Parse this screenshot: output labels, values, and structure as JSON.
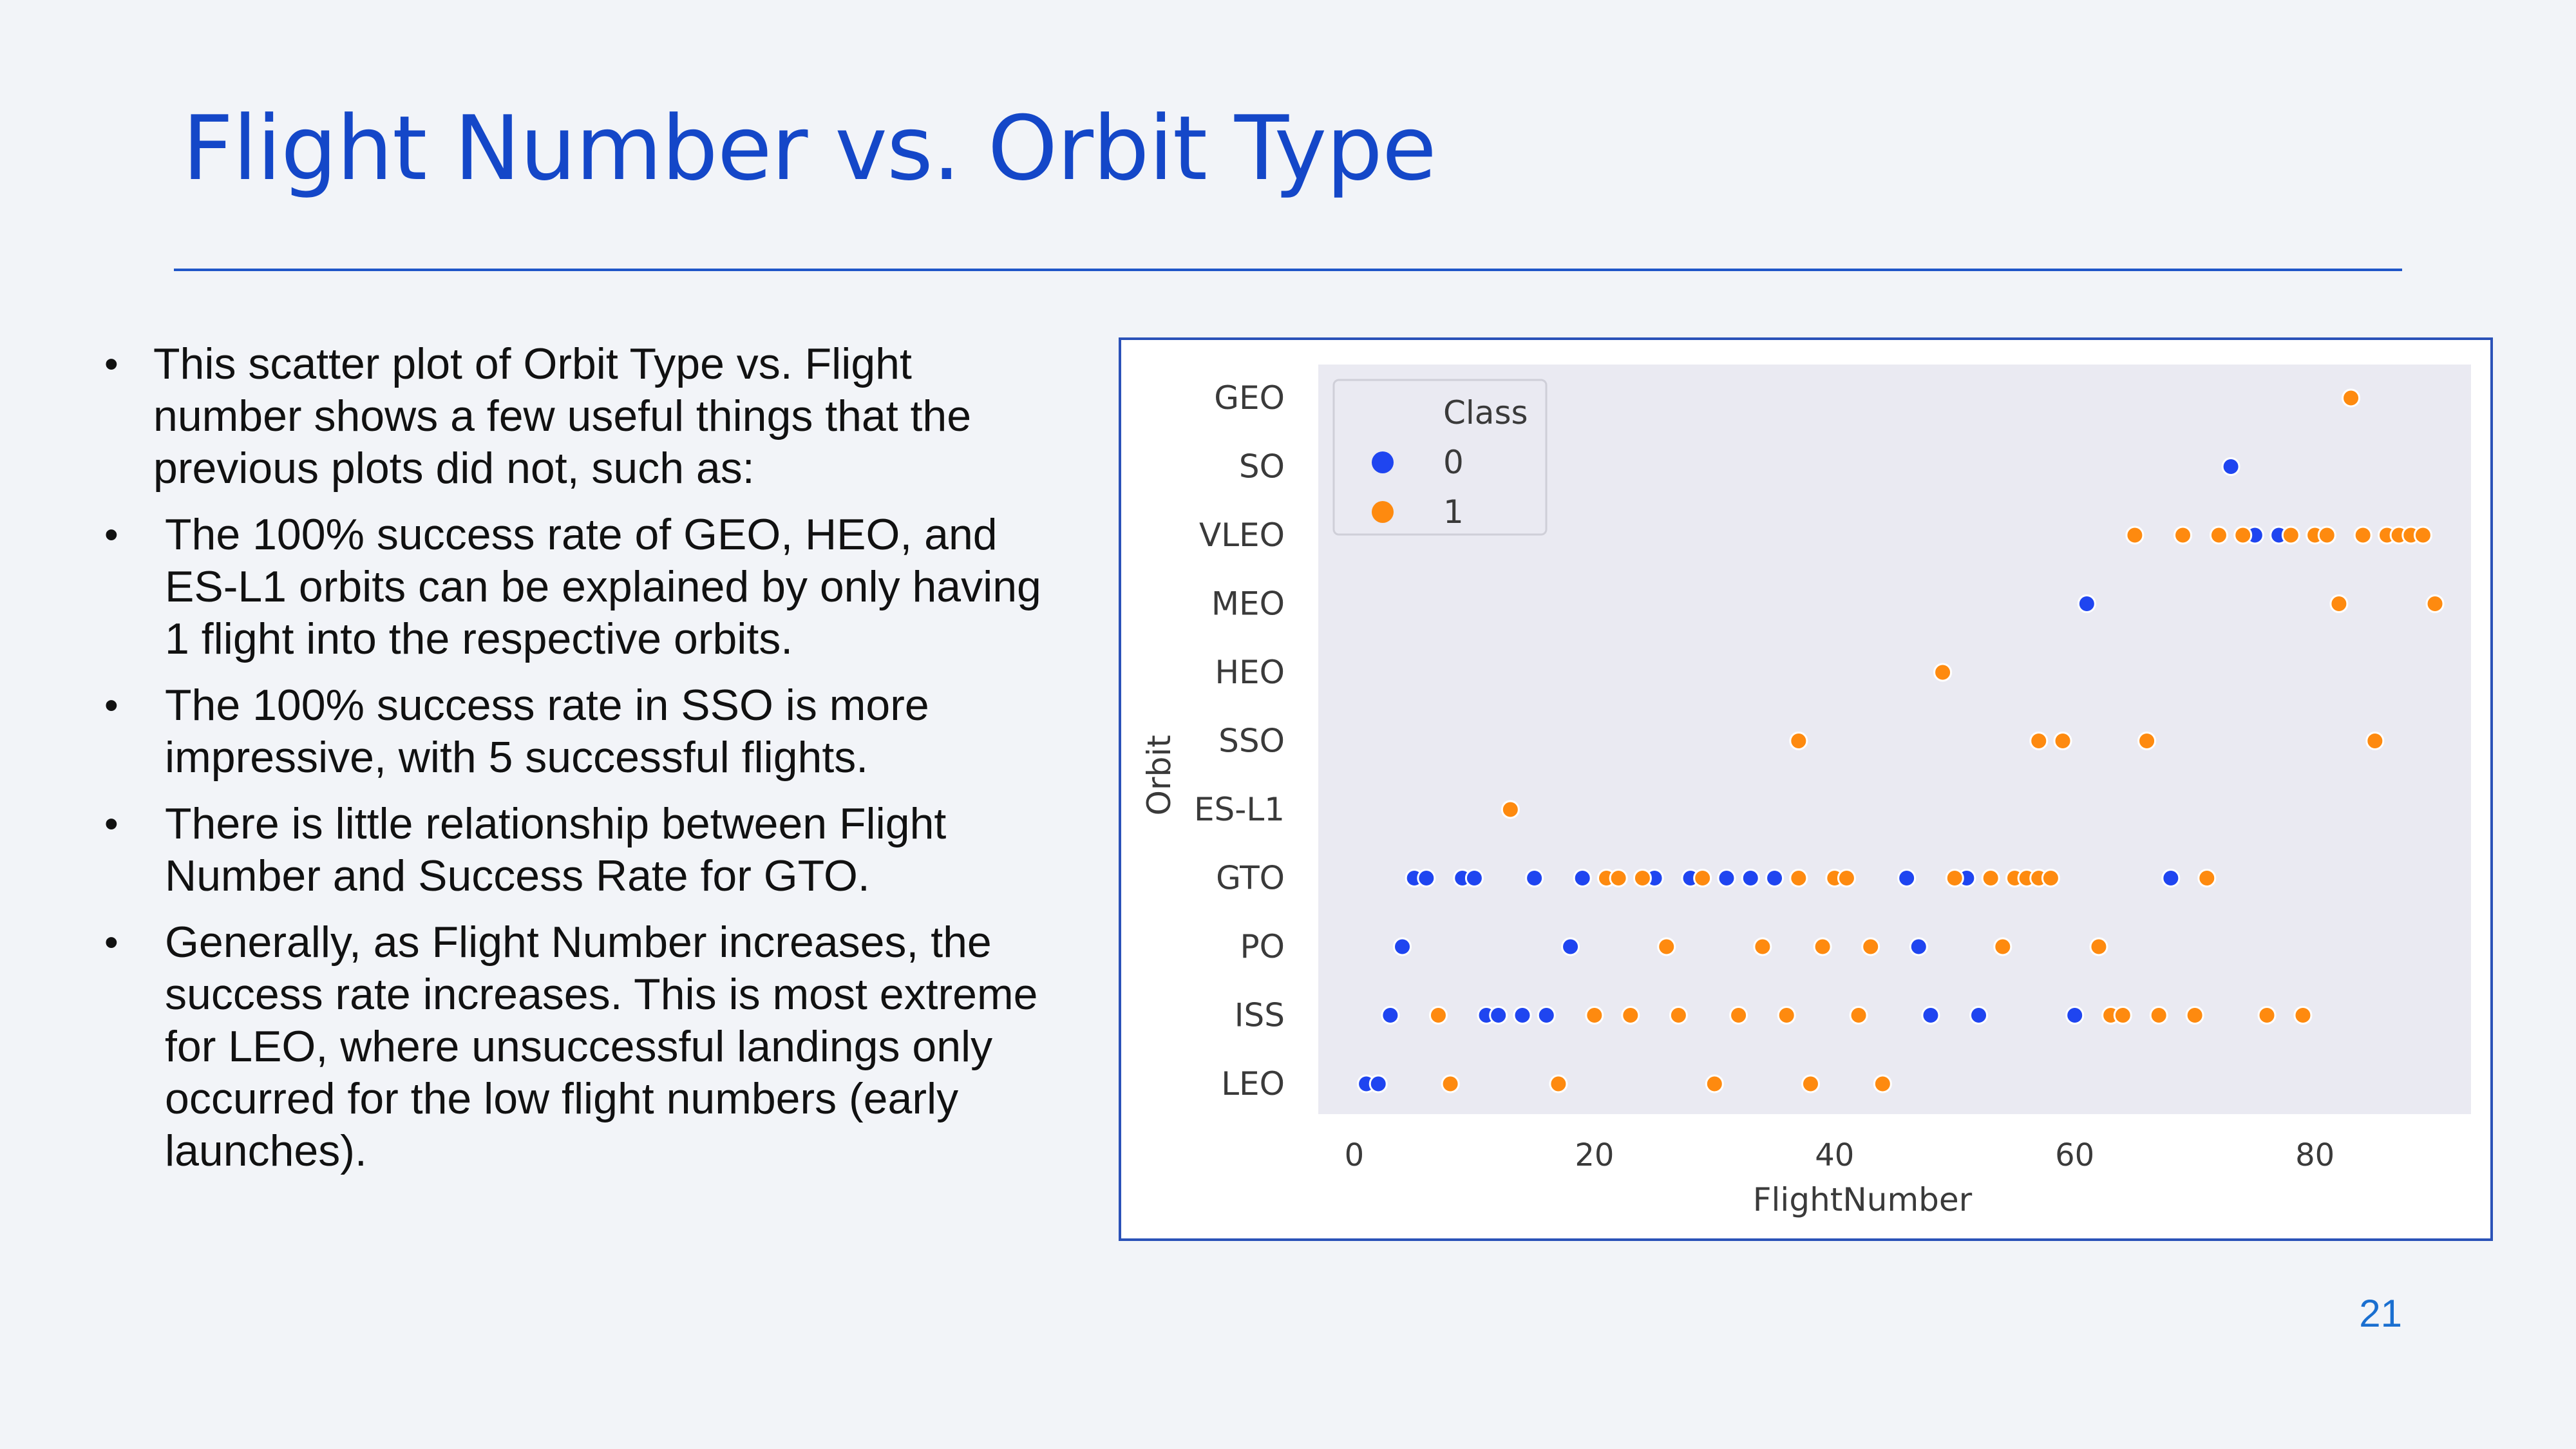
{
  "slide": {
    "title": "Flight Number vs. Orbit Type",
    "page_number": "21",
    "bullets": [
      "This scatter plot of Orbit Type vs. Flight number shows a few useful things that the previous plots did not, such as:",
      "The 100% success rate of GEO, HEO, and ES-L1 orbits can be explained by only having 1 flight into the respective orbits.",
      "The 100% success rate in SSO is more impressive, with 5 successful flights.",
      "There is little relationship between Flight Number and Success Rate for GTO.",
      "Generally, as Flight Number increases, the success rate increases. This is most extreme for LEO, where unsuccessful landings only occurred for the low flight numbers (early launches)."
    ],
    "bullet_glyph": "•"
  },
  "chart_data": {
    "type": "scatter",
    "title": "",
    "xlabel": "FlightNumber",
    "ylabel": "Orbit",
    "xlim": [
      -3,
      93
    ],
    "x_ticks": [
      0,
      20,
      40,
      60,
      80
    ],
    "categories": [
      "GEO",
      "SO",
      "VLEO",
      "MEO",
      "HEO",
      "SSO",
      "ES-L1",
      "GTO",
      "PO",
      "ISS",
      "LEO"
    ],
    "grid": false,
    "legend": {
      "title": "Class",
      "position": "top-left",
      "entries": [
        "0",
        "1"
      ]
    },
    "colors": {
      "0": "#1f45f0",
      "1": "#fe8a0f",
      "plot_bg": "#eaeaf2"
    },
    "series": [
      {
        "name": "0",
        "color": "#1f45f0",
        "points": [
          {
            "x": 1,
            "y": "LEO"
          },
          {
            "x": 2,
            "y": "LEO"
          },
          {
            "x": 3,
            "y": "ISS"
          },
          {
            "x": 11,
            "y": "ISS"
          },
          {
            "x": 12,
            "y": "ISS"
          },
          {
            "x": 14,
            "y": "ISS"
          },
          {
            "x": 16,
            "y": "ISS"
          },
          {
            "x": 48,
            "y": "ISS"
          },
          {
            "x": 52,
            "y": "ISS"
          },
          {
            "x": 60,
            "y": "ISS"
          },
          {
            "x": 4,
            "y": "PO"
          },
          {
            "x": 18,
            "y": "PO"
          },
          {
            "x": 47,
            "y": "PO"
          },
          {
            "x": 5,
            "y": "GTO"
          },
          {
            "x": 6,
            "y": "GTO"
          },
          {
            "x": 9,
            "y": "GTO"
          },
          {
            "x": 10,
            "y": "GTO"
          },
          {
            "x": 15,
            "y": "GTO"
          },
          {
            "x": 19,
            "y": "GTO"
          },
          {
            "x": 25,
            "y": "GTO"
          },
          {
            "x": 28,
            "y": "GTO"
          },
          {
            "x": 31,
            "y": "GTO"
          },
          {
            "x": 33,
            "y": "GTO"
          },
          {
            "x": 35,
            "y": "GTO"
          },
          {
            "x": 46,
            "y": "GTO"
          },
          {
            "x": 51,
            "y": "GTO"
          },
          {
            "x": 68,
            "y": "GTO"
          },
          {
            "x": 61,
            "y": "MEO"
          },
          {
            "x": 75,
            "y": "VLEO"
          },
          {
            "x": 77,
            "y": "VLEO"
          },
          {
            "x": 73,
            "y": "SO"
          }
        ]
      },
      {
        "name": "1",
        "color": "#fe8a0f",
        "points": [
          {
            "x": 8,
            "y": "LEO"
          },
          {
            "x": 17,
            "y": "LEO"
          },
          {
            "x": 30,
            "y": "LEO"
          },
          {
            "x": 38,
            "y": "LEO"
          },
          {
            "x": 44,
            "y": "LEO"
          },
          {
            "x": 7,
            "y": "ISS"
          },
          {
            "x": 20,
            "y": "ISS"
          },
          {
            "x": 23,
            "y": "ISS"
          },
          {
            "x": 27,
            "y": "ISS"
          },
          {
            "x": 32,
            "y": "ISS"
          },
          {
            "x": 36,
            "y": "ISS"
          },
          {
            "x": 42,
            "y": "ISS"
          },
          {
            "x": 63,
            "y": "ISS"
          },
          {
            "x": 64,
            "y": "ISS"
          },
          {
            "x": 67,
            "y": "ISS"
          },
          {
            "x": 70,
            "y": "ISS"
          },
          {
            "x": 76,
            "y": "ISS"
          },
          {
            "x": 79,
            "y": "ISS"
          },
          {
            "x": 26,
            "y": "PO"
          },
          {
            "x": 34,
            "y": "PO"
          },
          {
            "x": 39,
            "y": "PO"
          },
          {
            "x": 43,
            "y": "PO"
          },
          {
            "x": 54,
            "y": "PO"
          },
          {
            "x": 62,
            "y": "PO"
          },
          {
            "x": 21,
            "y": "GTO"
          },
          {
            "x": 22,
            "y": "GTO"
          },
          {
            "x": 24,
            "y": "GTO"
          },
          {
            "x": 29,
            "y": "GTO"
          },
          {
            "x": 37,
            "y": "GTO"
          },
          {
            "x": 40,
            "y": "GTO"
          },
          {
            "x": 41,
            "y": "GTO"
          },
          {
            "x": 50,
            "y": "GTO"
          },
          {
            "x": 53,
            "y": "GTO"
          },
          {
            "x": 55,
            "y": "GTO"
          },
          {
            "x": 56,
            "y": "GTO"
          },
          {
            "x": 57,
            "y": "GTO"
          },
          {
            "x": 58,
            "y": "GTO"
          },
          {
            "x": 71,
            "y": "GTO"
          },
          {
            "x": 13,
            "y": "ES-L1"
          },
          {
            "x": 37,
            "y": "SSO"
          },
          {
            "x": 57,
            "y": "SSO"
          },
          {
            "x": 59,
            "y": "SSO"
          },
          {
            "x": 66,
            "y": "SSO"
          },
          {
            "x": 85,
            "y": "SSO"
          },
          {
            "x": 49,
            "y": "HEO"
          },
          {
            "x": 82,
            "y": "MEO"
          },
          {
            "x": 90,
            "y": "MEO"
          },
          {
            "x": 65,
            "y": "VLEO"
          },
          {
            "x": 69,
            "y": "VLEO"
          },
          {
            "x": 72,
            "y": "VLEO"
          },
          {
            "x": 74,
            "y": "VLEO"
          },
          {
            "x": 78,
            "y": "VLEO"
          },
          {
            "x": 80,
            "y": "VLEO"
          },
          {
            "x": 81,
            "y": "VLEO"
          },
          {
            "x": 84,
            "y": "VLEO"
          },
          {
            "x": 86,
            "y": "VLEO"
          },
          {
            "x": 87,
            "y": "VLEO"
          },
          {
            "x": 88,
            "y": "VLEO"
          },
          {
            "x": 89,
            "y": "VLEO"
          },
          {
            "x": 83,
            "y": "GEO"
          }
        ]
      }
    ]
  }
}
